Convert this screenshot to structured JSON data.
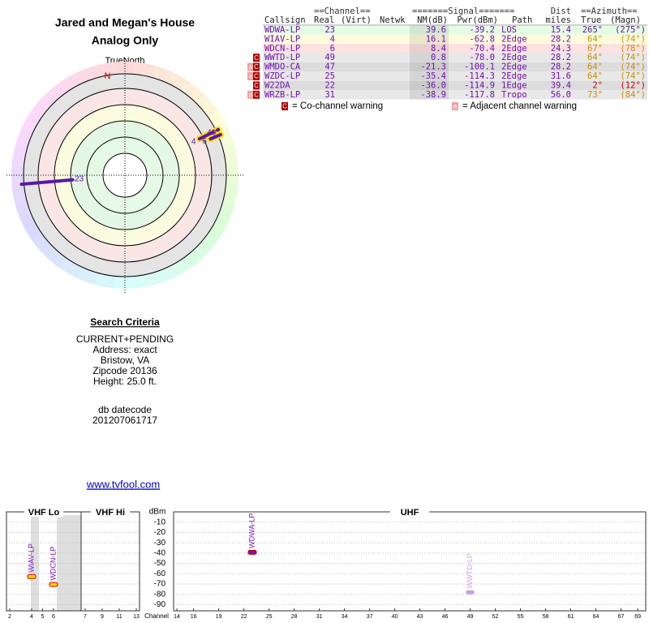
{
  "header": {
    "title": "Jared and Megan's House",
    "subtitle": "Analog Only"
  },
  "radar": {
    "north_label": "TrueNorth",
    "north_marker": "N",
    "north_azimuth": -10,
    "stations": [
      {
        "label": "23",
        "azimuth": 265,
        "nm": 39.6
      },
      {
        "label": "4",
        "azimuth": 64,
        "nm": 16.1,
        "outline": "#ffe000"
      },
      {
        "label": "6",
        "azimuth": 67,
        "nm": 8.4,
        "outline": "#ffe000"
      },
      {
        "label": "49",
        "azimuth": 64,
        "nm": 0.8,
        "outline": "#ffe000"
      }
    ]
  },
  "table": {
    "group_headers": [
      "==Channel==",
      "=======Signal=======",
      "Dist",
      "==Azimuth=="
    ],
    "headers": [
      "Callsign",
      "Real",
      "(Virt)",
      "Netwk",
      "NM(dB)",
      "Pwr(dBm)",
      "Path",
      "miles",
      "True",
      "(Magn)"
    ],
    "rows": [
      {
        "callsign": "WDWA-LP",
        "real": "23",
        "nm": "39.6",
        "pwr": "-39.2",
        "path": "LOS",
        "miles": "15.4",
        "true": "265°",
        "magn": "(275°)",
        "color": "#e4fbe4",
        "az_color": "#5a1890"
      },
      {
        "callsign": "WIAV-LP",
        "real": "4",
        "nm": "16.1",
        "pwr": "-62.8",
        "path": "2Edge",
        "miles": "28.2",
        "true": "64°",
        "magn": "(74°)",
        "color": "#fdfbdc",
        "az_color": "#c89000"
      },
      {
        "callsign": "WDCN-LP",
        "real": "6",
        "nm": "8.4",
        "pwr": "-70.4",
        "path": "2Edge",
        "miles": "24.3",
        "true": "67°",
        "magn": "(78°)",
        "color": "#fde2e2",
        "az_color": "#c89000"
      },
      {
        "callsign": "WWTD-LP",
        "real": "49",
        "nm": "0.8",
        "pwr": "-78.0",
        "path": "2Edge",
        "miles": "28.2",
        "true": "64°",
        "magn": "(74°)",
        "color": "#e8e8e8",
        "az_color": "#c89000",
        "warnings": [
          "C"
        ]
      },
      {
        "callsign": "WMDO-CA",
        "real": "47",
        "nm": "-21.3",
        "pwr": "-100.1",
        "path": "2Edge",
        "miles": "28.2",
        "true": "64°",
        "magn": "(74°)",
        "color": "#dcdcdc",
        "az_color": "#c89000",
        "warnings": [
          "a",
          "C"
        ]
      },
      {
        "callsign": "WZDC-LP",
        "real": "25",
        "nm": "-35.4",
        "pwr": "-114.3",
        "path": "2Edge",
        "miles": "31.6",
        "true": "64°",
        "magn": "(74°)",
        "color": "#e8e8e8",
        "az_color": "#c89000",
        "warnings": [
          "a",
          "C"
        ]
      },
      {
        "callsign": "W22DA",
        "real": "22",
        "nm": "-36.0",
        "pwr": "-114.9",
        "path": "1Edge",
        "miles": "39.4",
        "true": "2°",
        "magn": "(12°)",
        "color": "#dcdcdc",
        "az_color": "#c00000",
        "warnings": [
          "C"
        ]
      },
      {
        "callsign": "WRZB-LP",
        "real": "31",
        "nm": "-38.9",
        "pwr": "-117.8",
        "path": "Tropo",
        "miles": "56.0",
        "true": "73°",
        "magn": "(84°)",
        "color": "#e8e8e8",
        "az_color": "#c89000",
        "warnings": [
          "a",
          "C"
        ]
      }
    ],
    "legend": [
      {
        "symbol": "C",
        "text": "= Co-channel warning",
        "color": "#b00000"
      },
      {
        "symbol": "a",
        "text": "= Adjacent channel warning",
        "color": "#f0a0a0"
      }
    ]
  },
  "search": {
    "title": "Search Criteria",
    "lines": [
      "CURRENT+PENDING",
      "Address: exact",
      "Bristow, VA",
      "Zipcode 20136",
      "Height: 25.0 ft."
    ],
    "datecode_label": "db datecode",
    "datecode": "201207061717"
  },
  "link": "www.tvfool.com",
  "spectrum": {
    "y_label": "dBm",
    "x_label": "Channel",
    "ylim": [
      -96,
      0
    ],
    "yticks": [
      -10,
      -20,
      -30,
      -40,
      -50,
      -60,
      -70,
      -80,
      -90
    ],
    "panels": [
      {
        "name": "VHF Lo",
        "ticks": [
          2,
          4,
          5,
          6
        ]
      },
      {
        "name": "VHF Hi",
        "ticks": [
          7,
          9,
          11,
          13
        ]
      },
      {
        "name": "UHF",
        "ticks": [
          14,
          16,
          19,
          22,
          25,
          28,
          31,
          34,
          37,
          40,
          43,
          46,
          49,
          52,
          55,
          58,
          61,
          64,
          67,
          69
        ]
      }
    ],
    "signals": [
      {
        "name": "WIAV-LP",
        "channel": 4,
        "pwr": -62.8,
        "color": "#7a10c0",
        "fill": "#ffd000"
      },
      {
        "name": "WDCN-LP",
        "channel": 6,
        "pwr": -70.4,
        "color": "#7a10c0",
        "fill": "#ffd000"
      },
      {
        "name": "WDWA-LP",
        "channel": 23,
        "pwr": -39.2,
        "color": "#7a10c0",
        "fill": "#6a18b0"
      },
      {
        "name": "WWTD-LP",
        "channel": 49,
        "pwr": -78.0,
        "color": "#c9a0e8",
        "fill": "#c9a0e8"
      }
    ]
  }
}
